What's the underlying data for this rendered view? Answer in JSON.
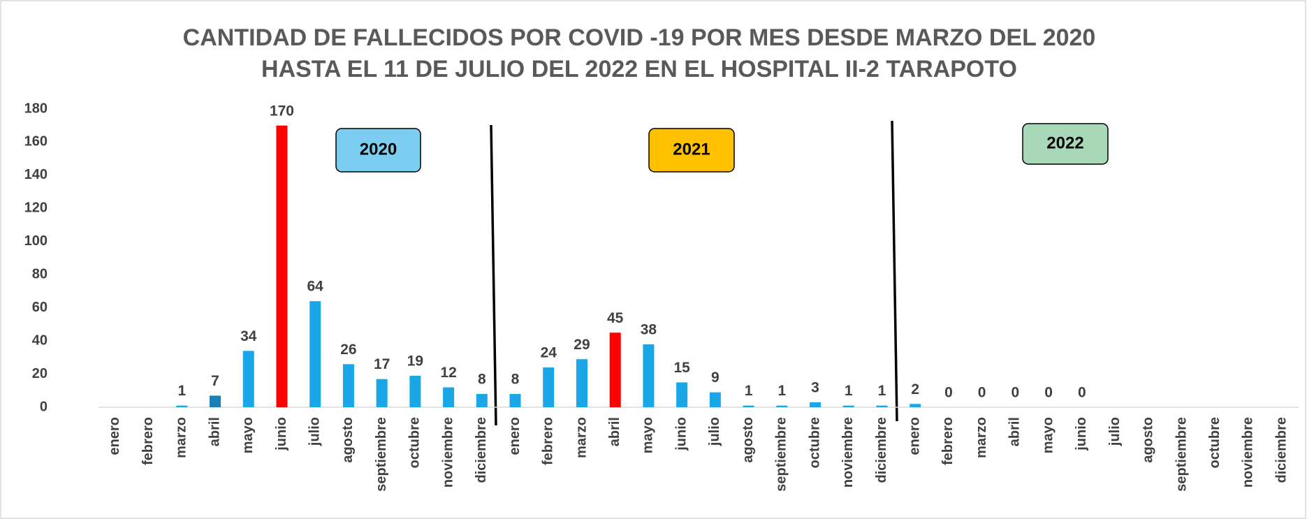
{
  "chart_data": {
    "type": "bar",
    "title": [
      "CANTIDAD DE FALLECIDOS POR COVID -19  POR MES  DESDE MARZO DEL 2020",
      "HASTA EL 11 DE JULIO DEL 2022 EN EL HOSPITAL II-2 TARAPOTO"
    ],
    "categories": [
      "enero",
      "febrero",
      "marzo",
      "abril",
      "mayo",
      "junio",
      "julio",
      "agosto",
      "septiembre",
      "octubre",
      "noviembre",
      "diciembre",
      "enero",
      "febrero",
      "marzo",
      "abril",
      "mayo",
      "junio",
      "julio",
      "agosto",
      "septiembre",
      "octubre",
      "noviembre",
      "diciembre",
      "enero",
      "febrero",
      "marzo",
      "abril",
      "mayo",
      "junio",
      "julio",
      "agosto",
      "septiembre",
      "octubre",
      "noviembre",
      "diciembre"
    ],
    "values": [
      null,
      null,
      1,
      7,
      34,
      170,
      64,
      26,
      17,
      19,
      12,
      8,
      8,
      24,
      29,
      45,
      38,
      15,
      9,
      1,
      1,
      3,
      1,
      1,
      2,
      0,
      0,
      0,
      0,
      0,
      null,
      null,
      null,
      null,
      null,
      null
    ],
    "colors": [
      "#1aa7e8",
      "#1aa7e8",
      "#1aa7e8",
      "#1a7fb5",
      "#1aa7e8",
      "#ff0000",
      "#1aa7e8",
      "#1aa7e8",
      "#1aa7e8",
      "#1aa7e8",
      "#1aa7e8",
      "#1aa7e8",
      "#1aa7e8",
      "#1aa7e8",
      "#1aa7e8",
      "#ff0000",
      "#1aa7e8",
      "#1aa7e8",
      "#1aa7e8",
      "#1aa7e8",
      "#1aa7e8",
      "#1aa7e8",
      "#1aa7e8",
      "#1aa7e8",
      "#1aa7e8",
      "#1aa7e8",
      "#1aa7e8",
      "#1aa7e8",
      "#1aa7e8",
      "#1aa7e8",
      "#1aa7e8",
      "#1aa7e8",
      "#1aa7e8",
      "#1aa7e8",
      "#1aa7e8",
      "#1aa7e8"
    ],
    "ylim": [
      0,
      180
    ],
    "yticks": [
      0,
      20,
      40,
      60,
      80,
      100,
      120,
      140,
      160,
      180
    ],
    "grid": false,
    "annotations": [
      {
        "text": "2020",
        "color": "#7ccdf0"
      },
      {
        "text": "2021",
        "color": "#ffc000"
      },
      {
        "text": "2022",
        "color": "#a9d8b8"
      }
    ]
  }
}
